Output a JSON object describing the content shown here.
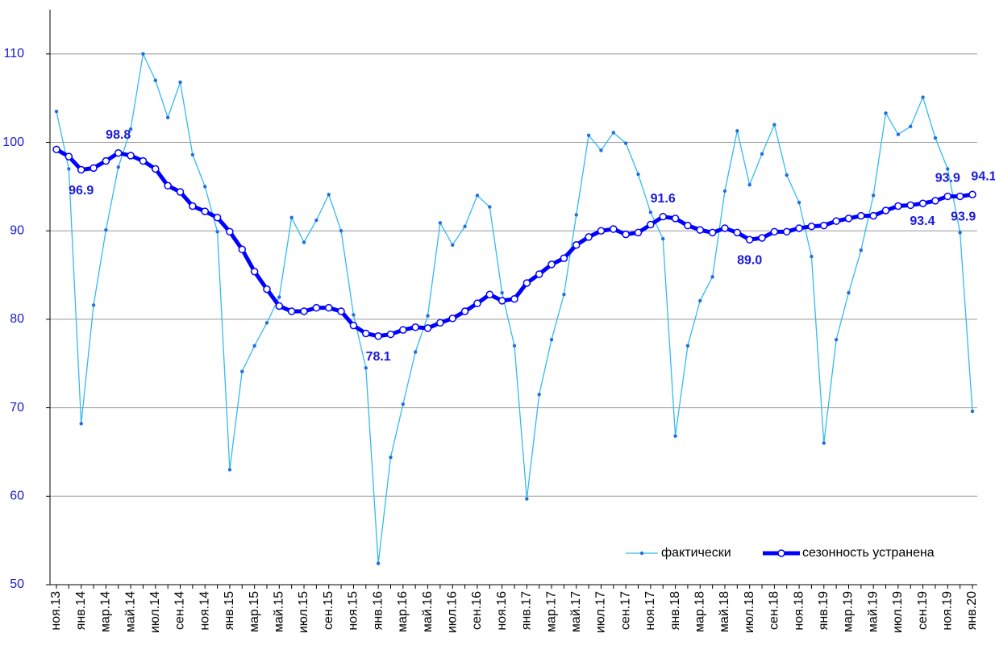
{
  "chart_data": {
    "type": "line",
    "categories": [
      "ноя.13",
      null,
      "янв.14",
      null,
      "мар.14",
      null,
      "май.14",
      null,
      "июл.14",
      null,
      "сен.14",
      null,
      "ноя.14",
      null,
      "янв.15",
      null,
      "мар.15",
      null,
      "май.15",
      null,
      "июл.15",
      null,
      "сен.15",
      null,
      "ноя.15",
      null,
      "янв.16",
      null,
      "мар.16",
      null,
      "май.16",
      null,
      "июл.16",
      null,
      "сен.16",
      null,
      "ноя.16",
      null,
      "янв.17",
      null,
      "мар.17",
      null,
      "май.17",
      null,
      "июл.17",
      null,
      "сен.17",
      null,
      "ноя.17",
      null,
      "янв.18",
      null,
      "мар.18",
      null,
      "май.18",
      null,
      "июл.18",
      null,
      "сен.18",
      null,
      "ноя.18",
      null,
      "янв.19",
      null,
      "мар.19",
      null,
      "май.19",
      null,
      "июл.19",
      null,
      "сен.19",
      null,
      "ноя.19",
      null,
      "янв.20"
    ],
    "series": [
      {
        "name": "фактически",
        "color": "#33bbee",
        "values": [
          103.5,
          97.0,
          68.2,
          81.6,
          90.1,
          97.2,
          101.5,
          110.0,
          107.0,
          102.8,
          106.8,
          98.6,
          95.0,
          89.9,
          63.0,
          74.1,
          77.0,
          79.6,
          82.5,
          91.5,
          88.7,
          91.2,
          94.1,
          90.0,
          80.5,
          74.5,
          52.4,
          64.4,
          70.4,
          76.3,
          80.4,
          90.9,
          88.4,
          90.5,
          94.0,
          92.7,
          83.0,
          77.0,
          59.7,
          71.5,
          77.7,
          82.8,
          91.8,
          100.8,
          99.1,
          101.1,
          99.9,
          96.4,
          92.1,
          89.1,
          66.8,
          77.0,
          82.1,
          84.8,
          94.5,
          101.3,
          95.2,
          98.7,
          102.0,
          96.3,
          93.2,
          87.1,
          66.0,
          77.7,
          83.0,
          87.8,
          94.0,
          103.3,
          100.9,
          101.8,
          105.1,
          100.5,
          97.0,
          89.8,
          69.6
        ]
      },
      {
        "name": "сезонность устранена",
        "color": "#0000ff",
        "values": [
          99.2,
          98.4,
          96.9,
          97.1,
          97.9,
          98.8,
          98.5,
          97.9,
          97.0,
          95.1,
          94.4,
          92.8,
          92.2,
          91.5,
          89.9,
          87.9,
          85.4,
          83.4,
          81.5,
          80.9,
          80.9,
          81.3,
          81.3,
          80.9,
          79.3,
          78.4,
          78.1,
          78.3,
          78.8,
          79.1,
          79.0,
          79.6,
          80.1,
          80.9,
          81.8,
          82.8,
          82.1,
          82.3,
          84.1,
          85.1,
          86.2,
          86.9,
          88.4,
          89.3,
          90.0,
          90.2,
          89.6,
          89.8,
          90.7,
          91.6,
          91.4,
          90.6,
          90.1,
          89.8,
          90.3,
          89.8,
          89.0,
          89.2,
          89.9,
          89.9,
          90.3,
          90.5,
          90.6,
          91.1,
          91.4,
          91.7,
          91.7,
          92.3,
          92.8,
          92.9,
          93.1,
          93.4,
          93.9,
          93.9,
          94.1
        ],
        "value_labels": [
          null,
          null,
          "96.9",
          null,
          null,
          "98.8",
          null,
          null,
          null,
          null,
          null,
          null,
          null,
          null,
          null,
          null,
          null,
          null,
          null,
          null,
          null,
          null,
          null,
          null,
          null,
          null,
          "78.1",
          null,
          null,
          null,
          null,
          null,
          null,
          null,
          null,
          null,
          null,
          null,
          null,
          null,
          null,
          null,
          null,
          null,
          null,
          null,
          null,
          null,
          null,
          "91.6",
          null,
          null,
          null,
          null,
          null,
          null,
          "89.0",
          null,
          null,
          null,
          null,
          null,
          null,
          null,
          null,
          null,
          null,
          null,
          null,
          null,
          null,
          "93.4",
          "93.9",
          "93.9",
          "94.1"
        ]
      }
    ],
    "ylim": [
      50,
      115
    ],
    "yticks": [
      50,
      60,
      70,
      80,
      90,
      100,
      110
    ],
    "grid": true,
    "legend": "lower right"
  }
}
